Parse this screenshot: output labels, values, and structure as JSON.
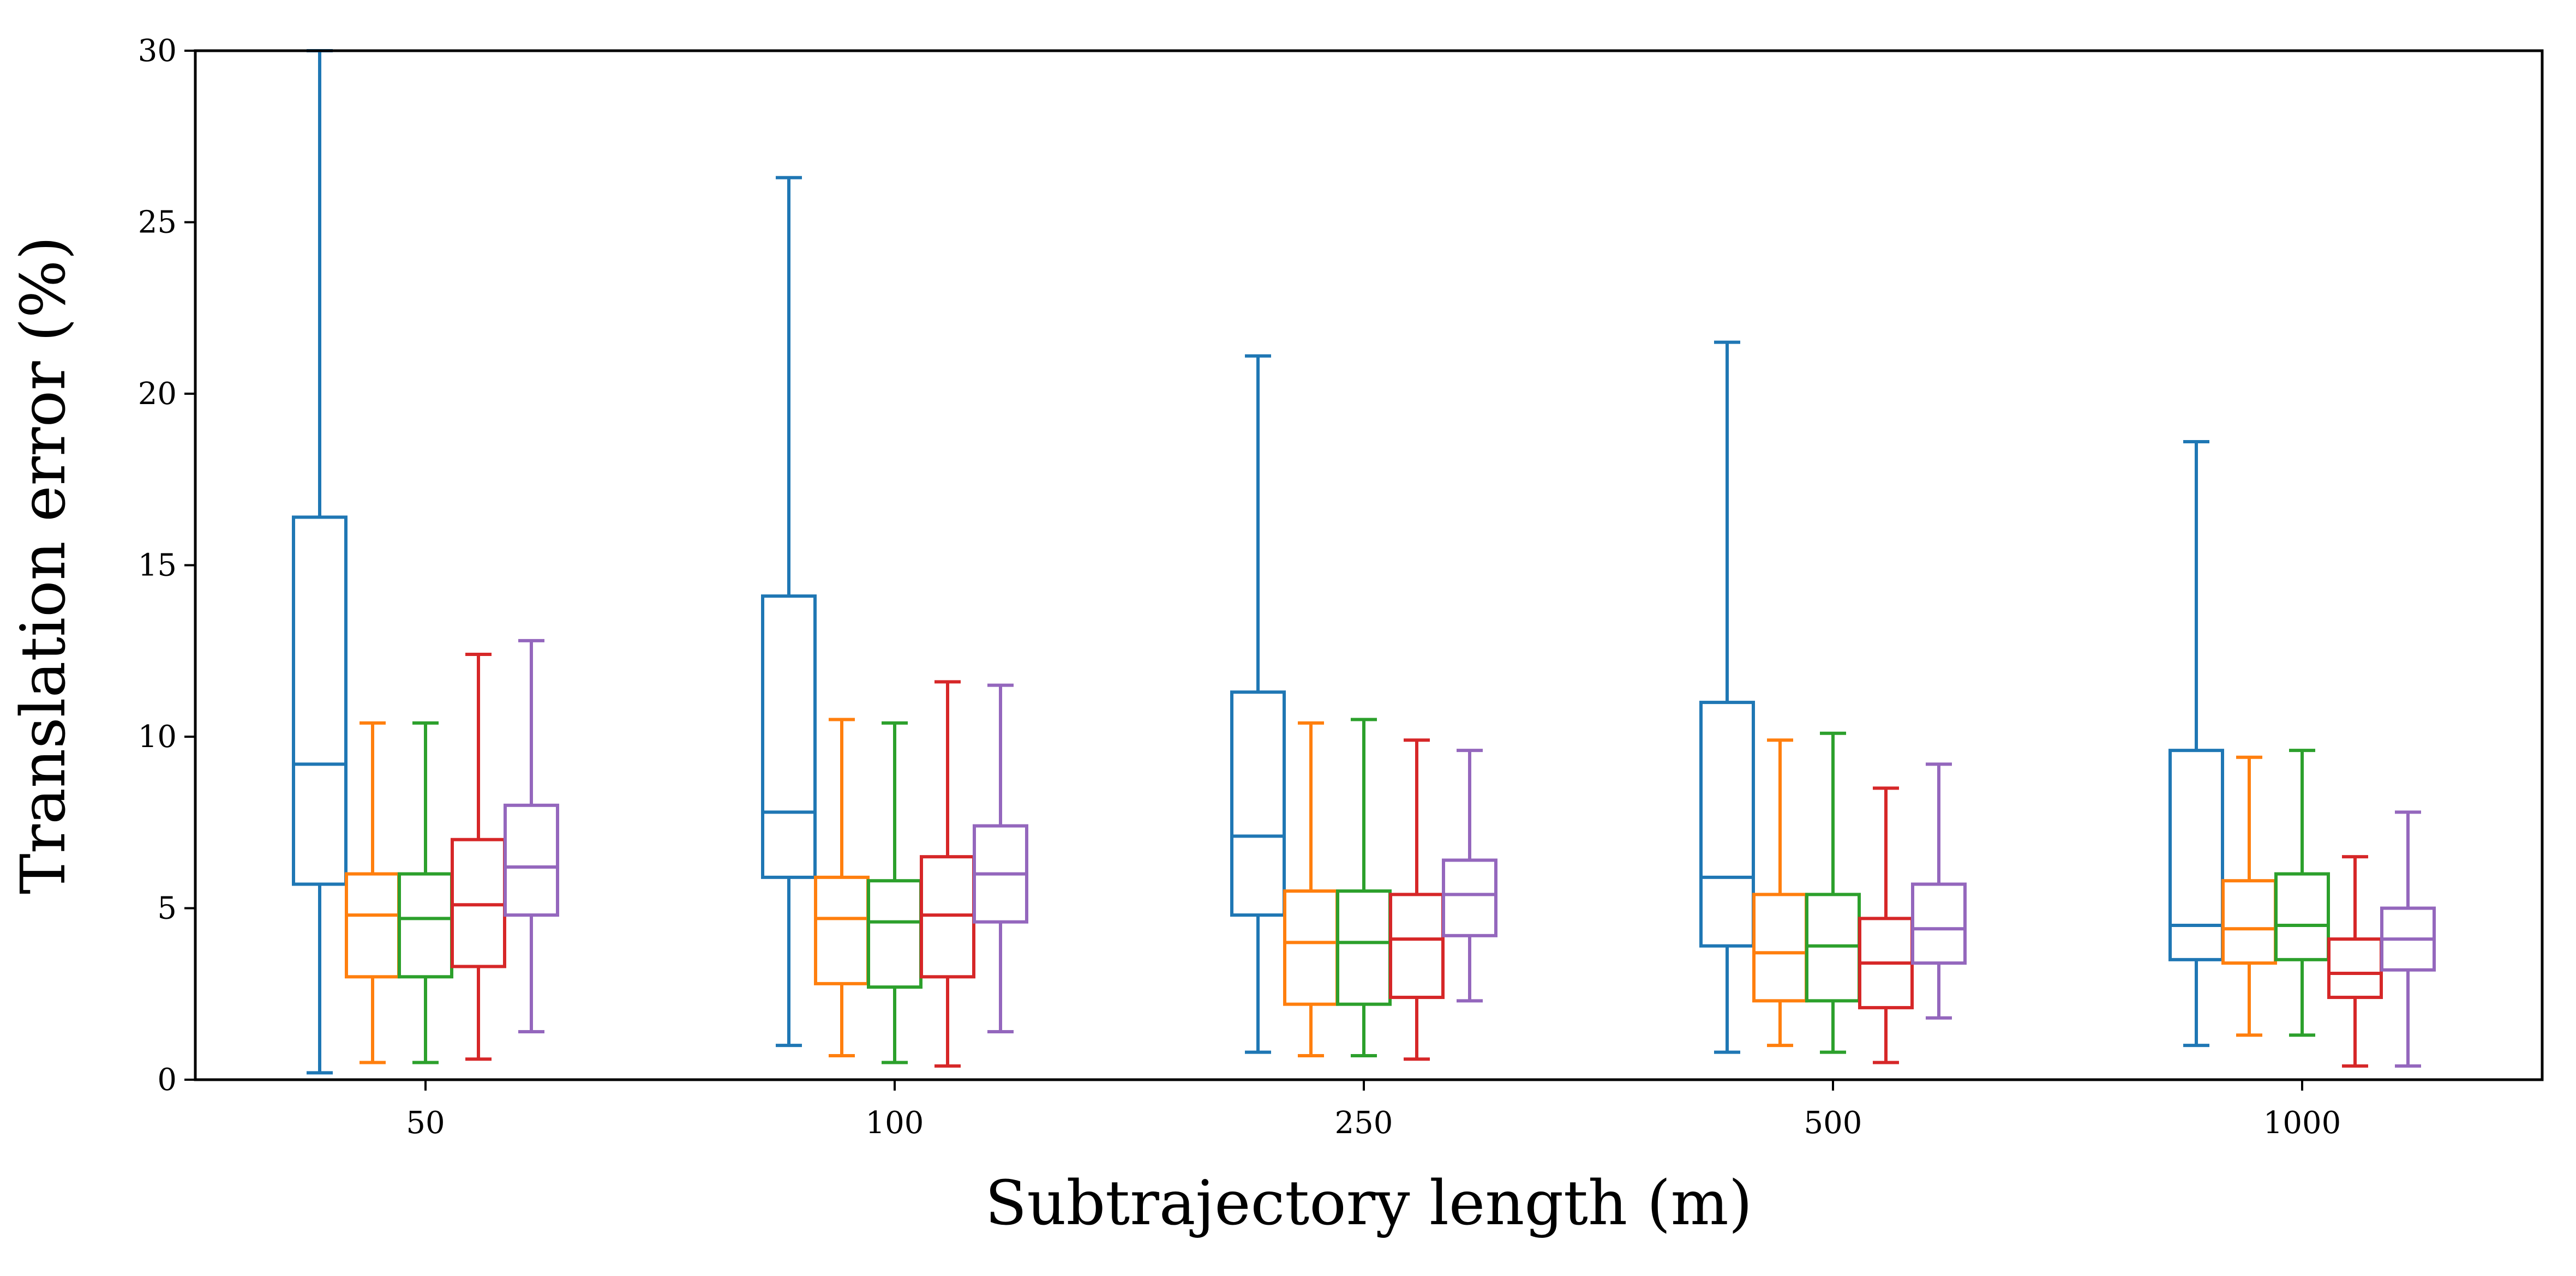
{
  "chart_data": {
    "type": "box",
    "title": "",
    "xlabel": "Subtrajectory length (m)",
    "ylabel": "Translation error (%)",
    "ylim": [
      0,
      30
    ],
    "yticks": [
      0,
      5,
      10,
      15,
      20,
      25,
      30
    ],
    "categories": [
      "50",
      "100",
      "250",
      "500",
      "1000"
    ],
    "grid": false,
    "legend": "none",
    "series": [
      {
        "color": "#1f77b4",
        "boxes": [
          {
            "whislo": 0.2,
            "q1": 5.7,
            "med": 9.2,
            "q3": 16.4,
            "whishi": 30.0
          },
          {
            "whislo": 1.0,
            "q1": 5.9,
            "med": 7.8,
            "q3": 14.1,
            "whishi": 26.3
          },
          {
            "whislo": 0.8,
            "q1": 4.8,
            "med": 7.1,
            "q3": 11.3,
            "whishi": 21.1
          },
          {
            "whislo": 0.8,
            "q1": 3.9,
            "med": 5.9,
            "q3": 11.0,
            "whishi": 21.5
          },
          {
            "whislo": 1.0,
            "q1": 3.5,
            "med": 4.5,
            "q3": 9.6,
            "whishi": 18.6
          }
        ]
      },
      {
        "color": "#ff7f0e",
        "boxes": [
          {
            "whislo": 0.5,
            "q1": 3.0,
            "med": 4.8,
            "q3": 6.0,
            "whishi": 10.4
          },
          {
            "whislo": 0.7,
            "q1": 2.8,
            "med": 4.7,
            "q3": 5.9,
            "whishi": 10.5
          },
          {
            "whislo": 0.7,
            "q1": 2.2,
            "med": 4.0,
            "q3": 5.5,
            "whishi": 10.4
          },
          {
            "whislo": 1.0,
            "q1": 2.3,
            "med": 3.7,
            "q3": 5.4,
            "whishi": 9.9
          },
          {
            "whislo": 1.3,
            "q1": 3.4,
            "med": 4.4,
            "q3": 5.8,
            "whishi": 9.4
          }
        ]
      },
      {
        "color": "#2ca02c",
        "boxes": [
          {
            "whislo": 0.5,
            "q1": 3.0,
            "med": 4.7,
            "q3": 6.0,
            "whishi": 10.4
          },
          {
            "whislo": 0.5,
            "q1": 2.7,
            "med": 4.6,
            "q3": 5.8,
            "whishi": 10.4
          },
          {
            "whislo": 0.7,
            "q1": 2.2,
            "med": 4.0,
            "q3": 5.5,
            "whishi": 10.5
          },
          {
            "whislo": 0.8,
            "q1": 2.3,
            "med": 3.9,
            "q3": 5.4,
            "whishi": 10.1
          },
          {
            "whislo": 1.3,
            "q1": 3.5,
            "med": 4.5,
            "q3": 6.0,
            "whishi": 9.6
          }
        ]
      },
      {
        "color": "#d62728",
        "boxes": [
          {
            "whislo": 0.6,
            "q1": 3.3,
            "med": 5.1,
            "q3": 7.0,
            "whishi": 12.4
          },
          {
            "whislo": 0.4,
            "q1": 3.0,
            "med": 4.8,
            "q3": 6.5,
            "whishi": 11.6
          },
          {
            "whislo": 0.6,
            "q1": 2.4,
            "med": 4.1,
            "q3": 5.4,
            "whishi": 9.9
          },
          {
            "whislo": 0.5,
            "q1": 2.1,
            "med": 3.4,
            "q3": 4.7,
            "whishi": 8.5
          },
          {
            "whislo": 0.4,
            "q1": 2.4,
            "med": 3.1,
            "q3": 4.1,
            "whishi": 6.5
          }
        ]
      },
      {
        "color": "#9467bd",
        "boxes": [
          {
            "whislo": 1.4,
            "q1": 4.8,
            "med": 6.2,
            "q3": 8.0,
            "whishi": 12.8
          },
          {
            "whislo": 1.4,
            "q1": 4.6,
            "med": 6.0,
            "q3": 7.4,
            "whishi": 11.5
          },
          {
            "whislo": 2.3,
            "q1": 4.2,
            "med": 5.4,
            "q3": 6.4,
            "whishi": 9.6
          },
          {
            "whislo": 1.8,
            "q1": 3.4,
            "med": 4.4,
            "q3": 5.7,
            "whishi": 9.2
          },
          {
            "whislo": 0.4,
            "q1": 3.2,
            "med": 4.1,
            "q3": 5.0,
            "whishi": 7.8
          }
        ]
      }
    ]
  }
}
